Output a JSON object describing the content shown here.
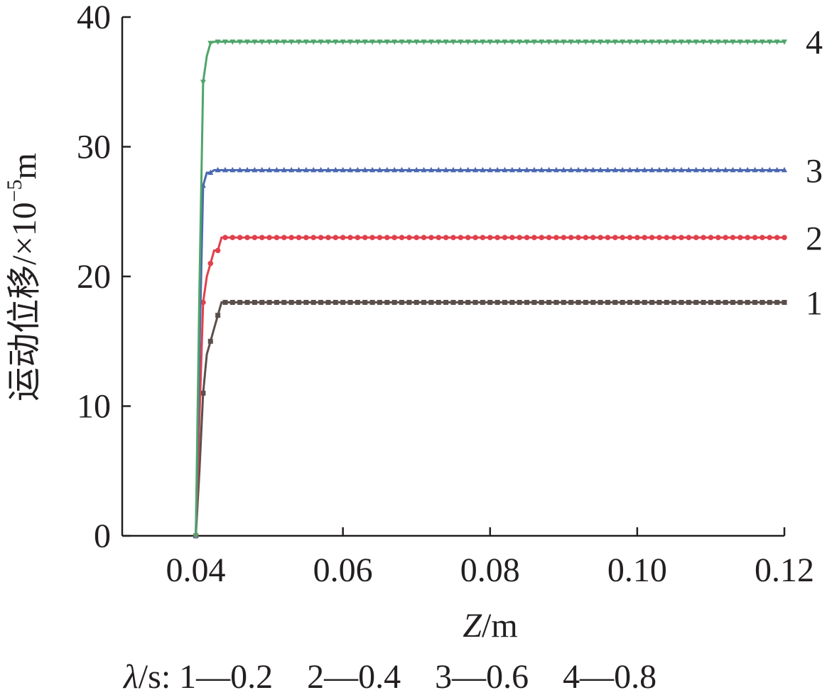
{
  "chart_data": {
    "type": "line",
    "xlabel_var": "Z",
    "xlabel_unit": "/m",
    "ylabel_main": "运动位移/",
    "ylabel_factor": "×10",
    "ylabel_exp": "−5",
    "ylabel_unit": "m",
    "xlim": [
      0.03,
      0.12
    ],
    "ylim": [
      0,
      40
    ],
    "xticks": [
      0.04,
      0.06,
      0.08,
      0.1,
      0.12
    ],
    "xtick_labels": [
      "0.04",
      "0.06",
      "0.08",
      "0.10",
      "0.12"
    ],
    "yticks": [
      0,
      10,
      20,
      30,
      40
    ],
    "ytick_labels": [
      "0",
      "10",
      "20",
      "30",
      "40"
    ],
    "grid": false,
    "legend": {
      "symbol": "λ",
      "unit": "/s: ",
      "entries": [
        {
          "id": "1",
          "value": "0.2"
        },
        {
          "id": "2",
          "value": "0.4"
        },
        {
          "id": "3",
          "value": "0.6"
        },
        {
          "id": "4",
          "value": "0.8"
        }
      ]
    },
    "series": [
      {
        "label": "1",
        "color": "#5b4f4b",
        "marker": "square",
        "points": [
          [
            0.04,
            0
          ],
          [
            0.0405,
            5
          ],
          [
            0.041,
            11
          ],
          [
            0.0415,
            14
          ],
          [
            0.042,
            15
          ],
          [
            0.0425,
            16
          ],
          [
            0.043,
            17
          ],
          [
            0.0435,
            18
          ],
          [
            0.044,
            18
          ],
          [
            0.12,
            18
          ]
        ]
      },
      {
        "label": "2",
        "color": "#e0414c",
        "marker": "circle",
        "points": [
          [
            0.04,
            0
          ],
          [
            0.0405,
            9
          ],
          [
            0.041,
            18
          ],
          [
            0.0415,
            20
          ],
          [
            0.042,
            21
          ],
          [
            0.0425,
            22
          ],
          [
            0.043,
            22
          ],
          [
            0.0435,
            23
          ],
          [
            0.044,
            23
          ],
          [
            0.12,
            23
          ]
        ]
      },
      {
        "label": "3",
        "color": "#4a68b0",
        "marker": "triangle-up",
        "points": [
          [
            0.04,
            0
          ],
          [
            0.0405,
            14
          ],
          [
            0.041,
            27
          ],
          [
            0.0415,
            28
          ],
          [
            0.042,
            28
          ],
          [
            0.0425,
            28.2
          ],
          [
            0.043,
            28.2
          ],
          [
            0.12,
            28.2
          ]
        ]
      },
      {
        "label": "4",
        "color": "#4fa56a",
        "marker": "triangle-down",
        "points": [
          [
            0.04,
            0
          ],
          [
            0.0405,
            19
          ],
          [
            0.041,
            35
          ],
          [
            0.0415,
            37
          ],
          [
            0.042,
            38
          ],
          [
            0.0425,
            38.1
          ],
          [
            0.043,
            38.1
          ],
          [
            0.12,
            38.1
          ]
        ]
      }
    ]
  }
}
